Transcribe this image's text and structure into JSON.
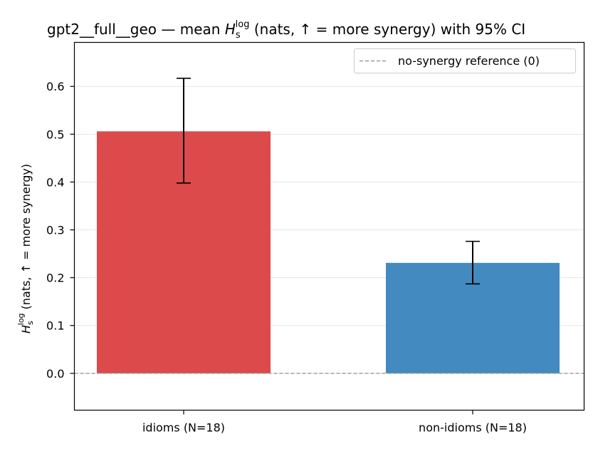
{
  "chart_data": {
    "type": "bar",
    "title": {
      "prefix": "gpt2__full__geo — mean ",
      "symbol": "H",
      "sub": "s",
      "sup": "log",
      "suffix": " (nats, ↑ = more synergy) with 95% CI"
    },
    "ylabel": {
      "symbol": "H",
      "sub": "s",
      "sup": "log",
      "suffix": " (nats, ↑ = more synergy)"
    },
    "xlabel": "",
    "categories": [
      "idioms (N=18)",
      "non-idioms (N=18)"
    ],
    "values": [
      0.506,
      0.231
    ],
    "ci_low": [
      0.398,
      0.187
    ],
    "ci_high": [
      0.617,
      0.276
    ],
    "colors": [
      "#dc4a4b",
      "#438ac0"
    ],
    "ylim": [
      -0.077,
      0.692
    ],
    "yticks": [
      0.0,
      0.1,
      0.2,
      0.3,
      0.4,
      0.5,
      0.6
    ],
    "ytick_labels": [
      "0.0",
      "0.1",
      "0.2",
      "0.3",
      "0.4",
      "0.5",
      "0.6"
    ],
    "grid": "horizontal",
    "reference_line": {
      "value": 0,
      "label": "no-synergy reference (0)",
      "color": "#999999",
      "style": "dashed"
    },
    "legend": {
      "position": "top-right"
    }
  }
}
